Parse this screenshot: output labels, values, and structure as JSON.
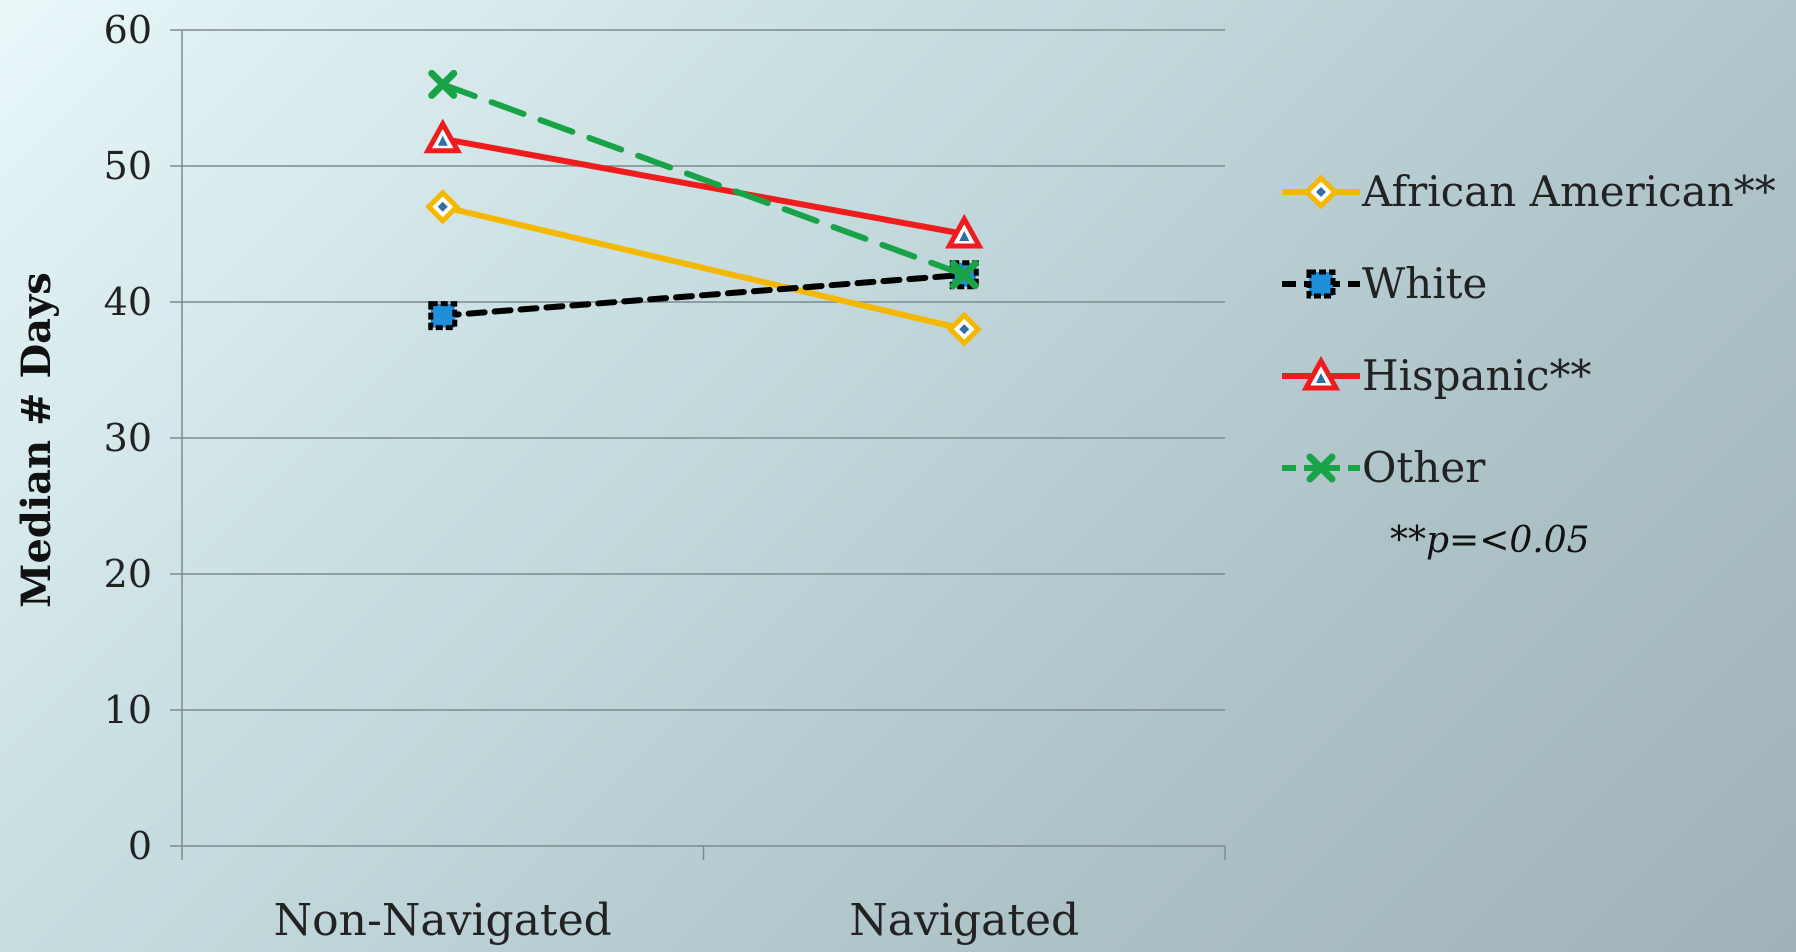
{
  "chart_data": {
    "type": "line",
    "categories": [
      "Non-Navigated",
      "Navigated"
    ],
    "series": [
      {
        "name": "African American**",
        "values": [
          47,
          38
        ],
        "color": "#f5b800",
        "marker": "diamond",
        "dashed": false
      },
      {
        "name": "White",
        "values": [
          39,
          42
        ],
        "color": "#000000",
        "marker": "square",
        "dashed": true
      },
      {
        "name": "Hispanic**",
        "values": [
          52,
          45
        ],
        "color": "#ee1c1c",
        "marker": "triangle",
        "dashed": false
      },
      {
        "name": "Other",
        "values": [
          56,
          42
        ],
        "color": "#17a346",
        "marker": "x",
        "dashed": true
      }
    ],
    "title": "",
    "xlabel": "",
    "ylabel": "Median # Days",
    "ylim": [
      0,
      60
    ],
    "yticks": [
      0,
      10,
      20,
      30,
      40,
      50,
      60
    ],
    "grid": true,
    "legend_position": "right",
    "note": "**p=<0.05"
  }
}
